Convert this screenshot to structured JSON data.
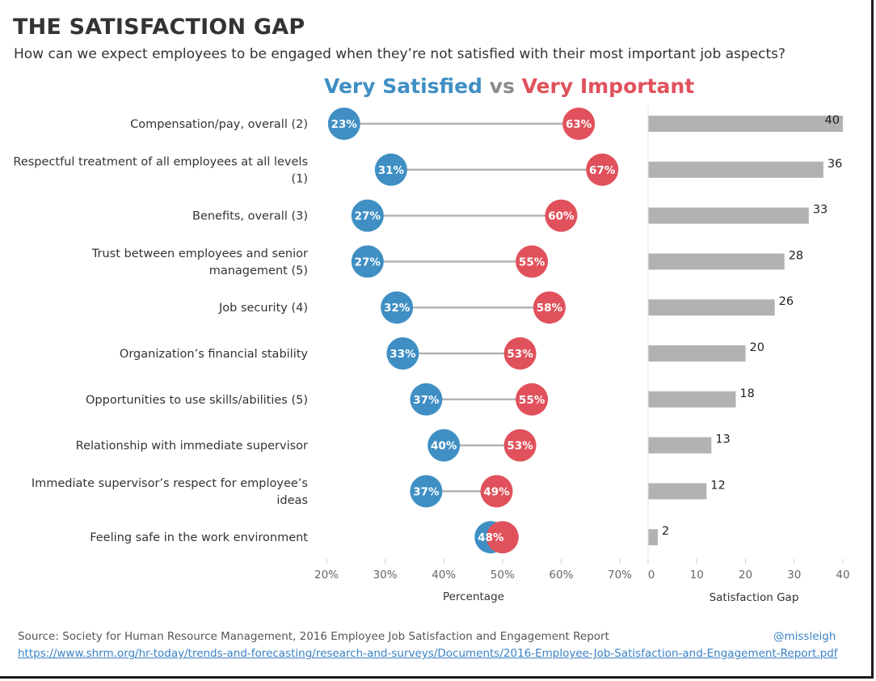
{
  "header": {
    "title": "THE SATISFACTION GAP",
    "subtitle": "How can we expect employees to be engaged when they’re not satisfied with their most important job aspects?"
  },
  "legend": {
    "satisfied_label": "Very Satisfied",
    "vs_label": "vs",
    "important_label": "Very Important"
  },
  "colors": {
    "satisfied": "#3f8fc4",
    "important": "#e0515c",
    "connector": "#b3b3b3",
    "gap_bar": "#b0b2b4",
    "text": "#333333"
  },
  "footer": {
    "source": "Source: Society for Human Resource Management, 2016 Employee Job Satisfaction and Engagement Report",
    "twitter": "@missleigh",
    "url": "https://www.shrm.org/hr-today/trends-and-forecasting/research-and-surveys/Documents/2016-Employee-Job-Satisfaction-and-Engagement-Report.pdf"
  },
  "chart_data": [
    {
      "type": "dumbbell",
      "title": "Very Satisfied vs Very Important",
      "xlabel": "Percentage",
      "xlim": [
        20,
        70
      ],
      "xticks": [
        20,
        30,
        40,
        50,
        60,
        70
      ],
      "tick_labels": [
        "20%",
        "30%",
        "40%",
        "50%",
        "60%",
        "70%"
      ],
      "categories": [
        [
          "Compensation/pay, overall (2)"
        ],
        [
          "Respectful treatment of all employees at all levels",
          "(1)"
        ],
        [
          "Benefits, overall (3)"
        ],
        [
          "Trust between employees and senior",
          "management (5)"
        ],
        [
          "Job security (4)"
        ],
        [
          "Organization’s financial stability"
        ],
        [
          "Opportunities to use skills/abilities (5)"
        ],
        [
          "Relationship with immediate supervisor"
        ],
        [
          "Immediate supervisor’s respect for employee’s",
          "ideas"
        ],
        [
          "Feeling safe in the work environment"
        ]
      ],
      "series": [
        {
          "name": "Very Satisfied",
          "values": [
            23,
            31,
            27,
            27,
            32,
            33,
            37,
            40,
            37,
            48
          ]
        },
        {
          "name": "Very Important",
          "values": [
            63,
            67,
            60,
            55,
            58,
            53,
            55,
            53,
            49,
            50
          ]
        }
      ],
      "data_labels": {
        "satisfied": [
          "23%",
          "31%",
          "27%",
          "27%",
          "32%",
          "33%",
          "37%",
          "40%",
          "37%",
          "48%"
        ],
        "important": [
          "63%",
          "67%",
          "60%",
          "55%",
          "58%",
          "53%",
          "55%",
          "53%",
          "49%",
          ""
        ]
      }
    },
    {
      "type": "bar",
      "orientation": "horizontal",
      "xlabel": "Satisfaction Gap",
      "xlim": [
        0,
        40
      ],
      "xticks": [
        0,
        10,
        20,
        30,
        40
      ],
      "values": [
        40,
        36,
        33,
        28,
        26,
        20,
        18,
        13,
        12,
        2
      ]
    }
  ]
}
